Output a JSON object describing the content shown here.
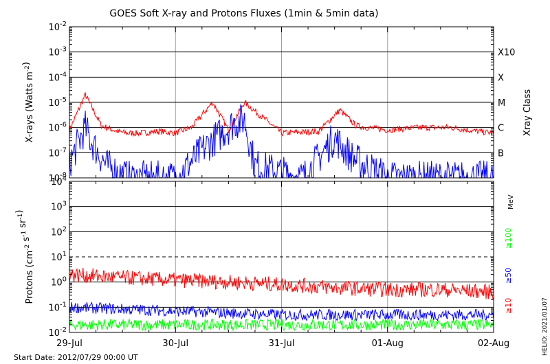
{
  "title": "GOES Soft X-ray and Protons Fluxes   (1min & 5min data)",
  "start_date": "Start Date: 2012/07/29 00:00 UT",
  "credit": "HELIO: 2021/01/07",
  "colors": {
    "red": "#ff0000",
    "blue": "#0000ff",
    "green": "#00ff00",
    "grid_v": "#a0a0a0"
  },
  "chart_data": [
    {
      "type": "line",
      "title": "GOES Soft X-ray and Protons Fluxes   (1min & 5min data)",
      "ylabel": "X-rays (Watts m^-2)",
      "yscale": "log",
      "ylim": [
        1e-08,
        0.01
      ],
      "y_ticks": [
        "10^-8",
        "10^-7",
        "10^-6",
        "10^-5",
        "10^-4",
        "10^-3",
        "10^-2"
      ],
      "right_axis_label": "Xray Class",
      "xray_classes": [
        {
          "label": "B",
          "value": 1e-07
        },
        {
          "label": "C",
          "value": 1e-06
        },
        {
          "label": "M",
          "value": 1e-05
        },
        {
          "label": "X",
          "value": 0.0001
        },
        {
          "label": "X10",
          "value": 0.001
        }
      ],
      "x_ticks": [
        "29-Jul",
        "30-Jul",
        "31-Jul",
        "01-Aug",
        "02-Aug"
      ],
      "x_tick_days": [
        0,
        1,
        2,
        3,
        4
      ],
      "series": [
        {
          "color": "#ff0000",
          "x": [
            0,
            0.15,
            0.3,
            0.45,
            0.55,
            0.65,
            0.85,
            1,
            1.15,
            1.35,
            1.5,
            1.65,
            2,
            2.35,
            2.55,
            2.7,
            2.8,
            3,
            3.3,
            3.6,
            3.85,
            4
          ],
          "y": [
            8e-07,
            2e-05,
            1.2e-06,
            7e-07,
            6e-07,
            6e-07,
            7e-07,
            6e-07,
            1e-06,
            1e-05,
            8e-07,
            1e-05,
            6e-07,
            7e-07,
            5e-06,
            1.2e-06,
            1e-06,
            8e-07,
            1e-06,
            1e-06,
            7e-07,
            6e-07
          ]
        },
        {
          "color": "#0000ff",
          "x": [
            0,
            0.15,
            0.2,
            0.35,
            0.55,
            0.75,
            1,
            1.3,
            1.55,
            1.65,
            1.75,
            2.2,
            2.5,
            2.58,
            2.7,
            3,
            3.5,
            4
          ],
          "y": [
            4e-08,
            1e-06,
            3e-07,
            3e-08,
            1e-08,
            1e-08,
            1e-08,
            2e-07,
            1.5e-06,
            2e-06,
            3e-08,
            1e-08,
            4e-07,
            1.5e-07,
            5e-08,
            1e-08,
            1e-08,
            1e-08
          ]
        }
      ]
    },
    {
      "type": "line",
      "ylabel": "Protons (cm^-2 s^-1 sr^-1)",
      "yscale": "log",
      "ylim": [
        0.01,
        10000
      ],
      "y_ticks": [
        "10^-2",
        "10^-1",
        "10^0",
        "10^1",
        "10^2",
        "10^3",
        "10^4"
      ],
      "threshold": 10,
      "right_axis_label": "MeV",
      "x_ticks": [
        "29-Jul",
        "30-Jul",
        "31-Jul",
        "01-Aug",
        "02-Aug"
      ],
      "x_tick_days": [
        0,
        1,
        2,
        3,
        4
      ],
      "series": [
        {
          "name": "≥100",
          "color": "#00ff00",
          "x": [
            0,
            4
          ],
          "y": [
            0.02,
            0.02
          ]
        },
        {
          "name": "≥50",
          "color": "#0000ff",
          "x": [
            0,
            1,
            2,
            3,
            4
          ],
          "y": [
            0.1,
            0.07,
            0.05,
            0.05,
            0.05
          ]
        },
        {
          "name": "≥10",
          "color": "#ff0000",
          "x": [
            0,
            0.5,
            1,
            1.5,
            2,
            2.5,
            3,
            3.5,
            4
          ],
          "y": [
            2,
            1.5,
            1.2,
            1,
            0.8,
            0.6,
            0.5,
            0.5,
            0.4
          ]
        }
      ]
    }
  ]
}
